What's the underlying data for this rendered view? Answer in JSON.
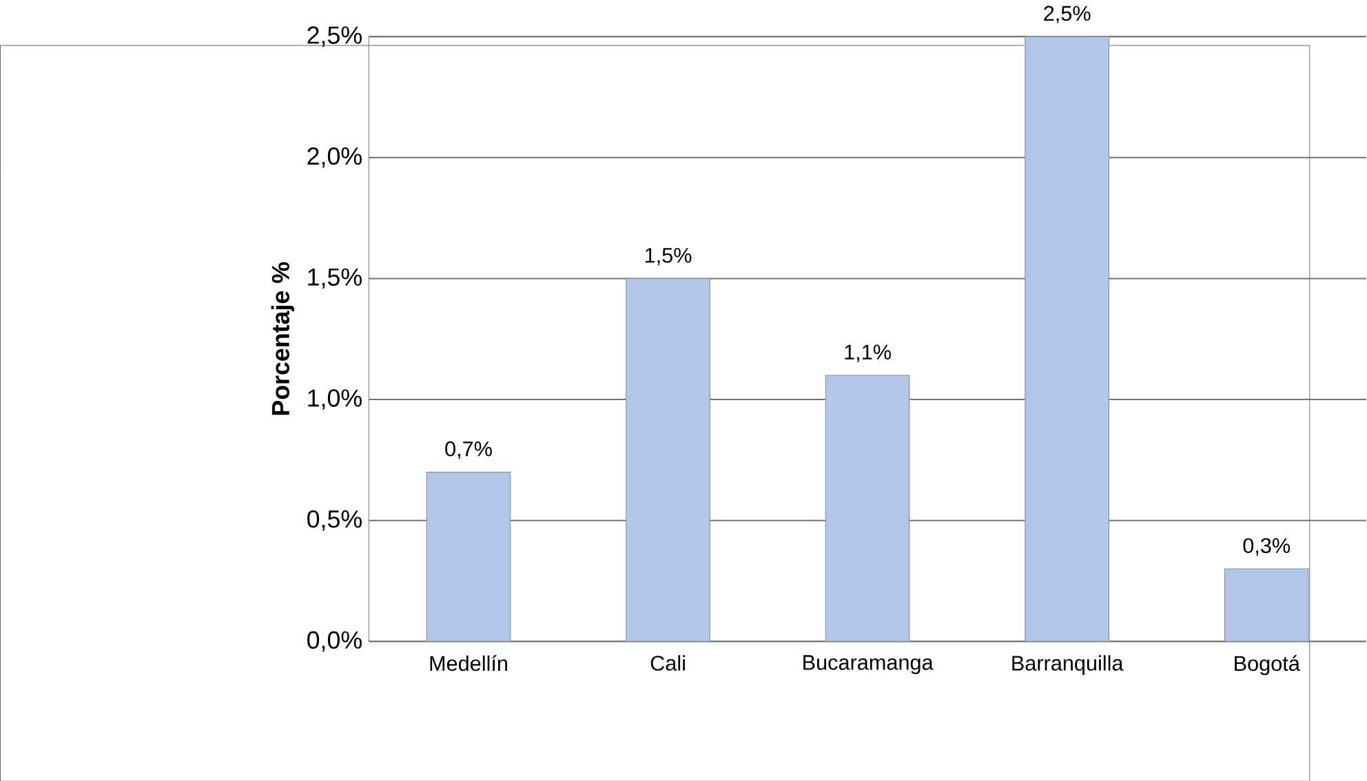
{
  "chart_data": {
    "type": "bar",
    "ylabel": "Porcentaje  %",
    "categories": [
      "Medellín",
      "Cali",
      "Bucaramanga",
      "Barranquilla",
      "Bogotá"
    ],
    "values": [
      0.7,
      1.5,
      1.1,
      2.5,
      0.3
    ],
    "value_labels": [
      "0,7%",
      "1,5%",
      "1,1%",
      "2,5%",
      "0,3%"
    ],
    "color": "#b3c6e7",
    "ylim": [
      0,
      2.5
    ],
    "yticks": [
      {
        "value": 0,
        "label": "0,0%"
      },
      {
        "value": 0.5,
        "label": "0,5%"
      },
      {
        "value": 1.0,
        "label": "1,0%"
      },
      {
        "value": 1.5,
        "label": "1,5%"
      },
      {
        "value": 2.0,
        "label": "2,0%"
      },
      {
        "value": 2.5,
        "label": "2,5%"
      }
    ],
    "grid": "y"
  }
}
